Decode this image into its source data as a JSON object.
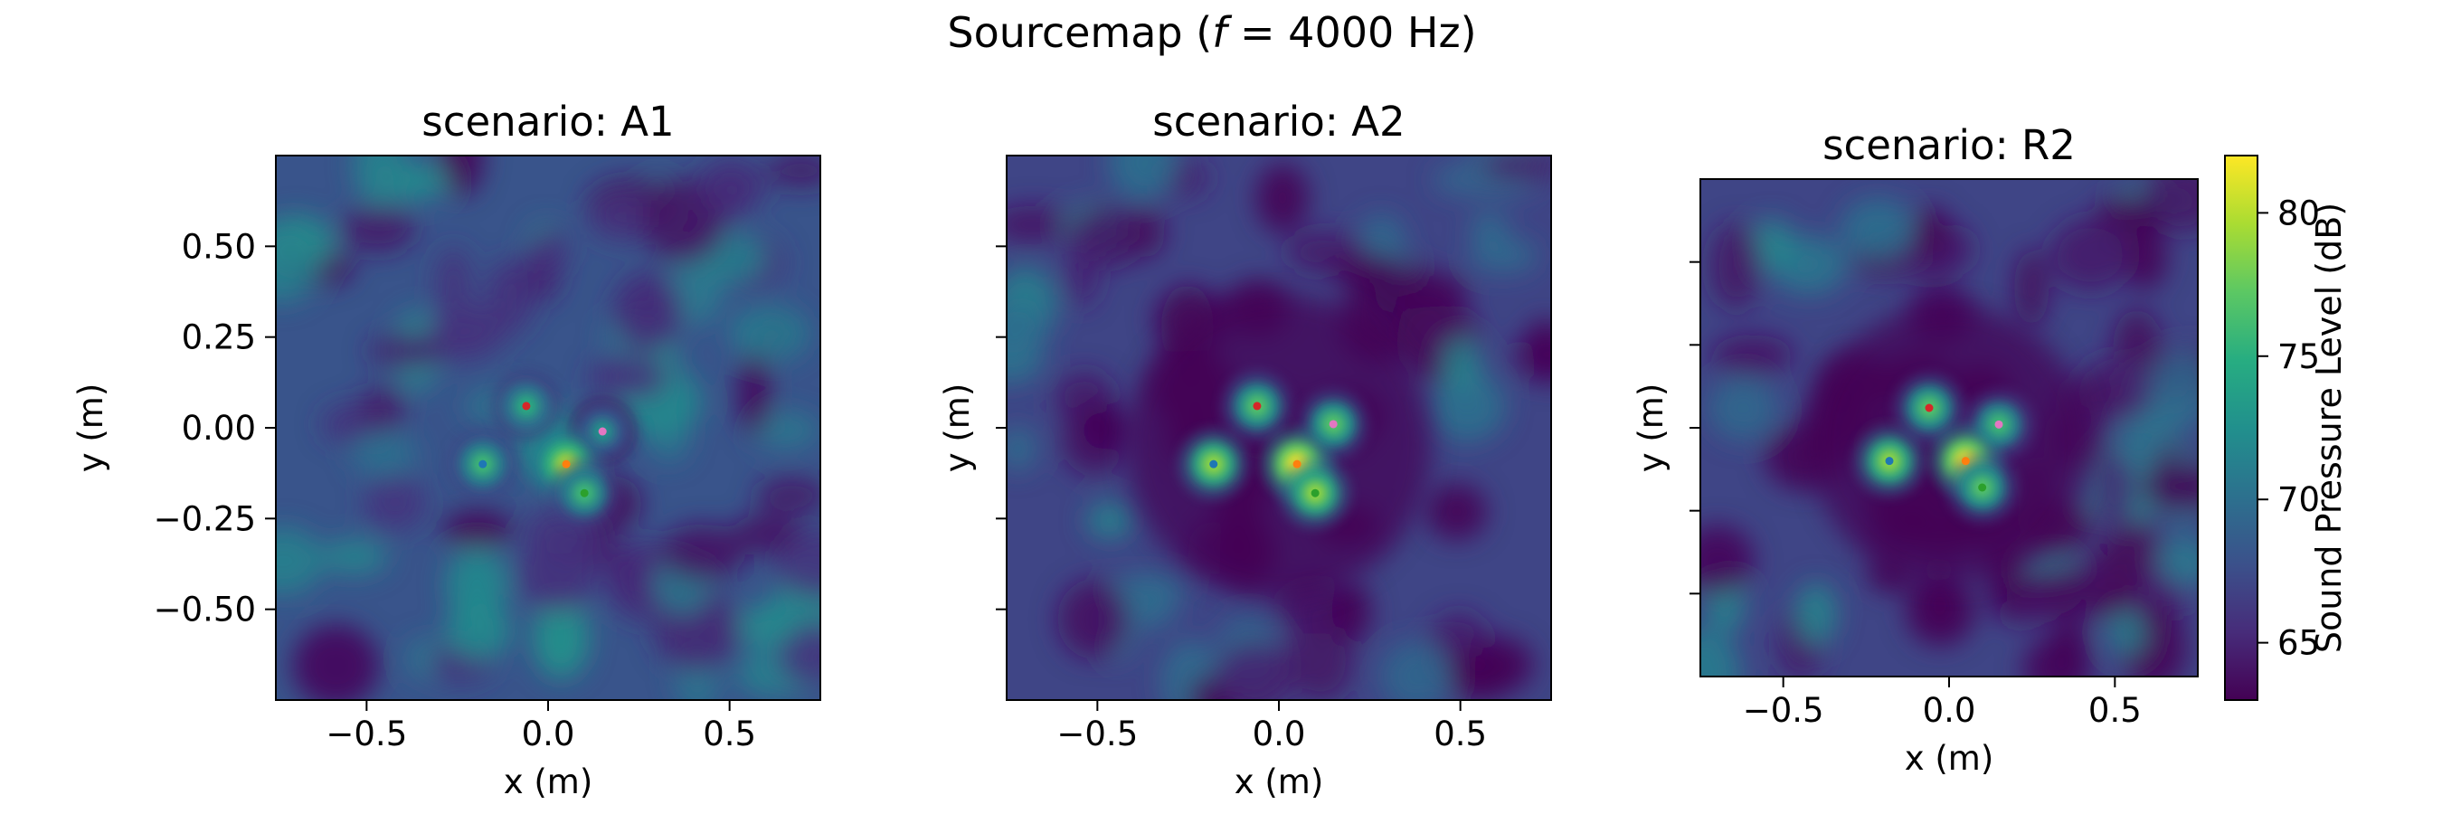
{
  "suptitle": {
    "prefix": "Sourcemap (",
    "f": "f",
    "eq": " = 4000 Hz)"
  },
  "colormap": {
    "name": "viridis",
    "stops": [
      "#440154",
      "#472c7a",
      "#3b518b",
      "#2c718e",
      "#21908d",
      "#27ad81",
      "#5cc863",
      "#aadc32",
      "#fde725"
    ]
  },
  "source_colors": [
    "#1f77b4",
    "#d62728",
    "#e377c2",
    "#ff7f0e",
    "#2ca02c"
  ],
  "chart_data": [
    {
      "type": "heatmap",
      "title": "scenario: A1",
      "xlabel": "x (m)",
      "ylabel": "y (m)",
      "xlim": [
        -0.75,
        0.75
      ],
      "ylim": [
        -0.75,
        0.75
      ],
      "xticks": [
        -0.5,
        0.0,
        0.5
      ],
      "xtick_labels": [
        "−0.5",
        "0.0",
        "0.5"
      ],
      "yticks": [
        -0.5,
        -0.25,
        0.0,
        0.25,
        0.5
      ],
      "ytick_labels": [
        "−0.50",
        "−0.25",
        "0.00",
        "0.25",
        "0.50"
      ],
      "background_level_db": 68,
      "sources": [
        {
          "x": -0.18,
          "y": -0.1,
          "level_db": 76,
          "color": "#1f77b4"
        },
        {
          "x": -0.06,
          "y": 0.06,
          "level_db": 75,
          "color": "#d62728"
        },
        {
          "x": 0.15,
          "y": -0.01,
          "level_db": 73,
          "color": "#e377c2"
        },
        {
          "x": 0.05,
          "y": -0.1,
          "level_db": 80,
          "color": "#ff7f0e"
        },
        {
          "x": 0.1,
          "y": -0.18,
          "level_db": 76,
          "color": "#2ca02c"
        }
      ]
    },
    {
      "type": "heatmap",
      "title": "scenario: A2",
      "xlabel": "x (m)",
      "ylabel": "y (m)",
      "xlim": [
        -0.75,
        0.75
      ],
      "ylim": [
        -0.75,
        0.75
      ],
      "xticks": [
        -0.5,
        0.0,
        0.5
      ],
      "xtick_labels": [
        "−0.5",
        "0.0",
        "0.5"
      ],
      "yticks": [
        -0.5,
        -0.25,
        0.0,
        0.25,
        0.5
      ],
      "ytick_labels": [],
      "background_level_db": 67,
      "sources": [
        {
          "x": -0.18,
          "y": -0.1,
          "level_db": 79,
          "color": "#1f77b4"
        },
        {
          "x": -0.06,
          "y": 0.06,
          "level_db": 77,
          "color": "#d62728"
        },
        {
          "x": 0.15,
          "y": 0.01,
          "level_db": 77,
          "color": "#e377c2"
        },
        {
          "x": 0.05,
          "y": -0.1,
          "level_db": 82,
          "color": "#ff7f0e"
        },
        {
          "x": 0.1,
          "y": -0.18,
          "level_db": 79,
          "color": "#2ca02c"
        }
      ]
    },
    {
      "type": "heatmap",
      "title": "scenario: R2",
      "xlabel": "x (m)",
      "ylabel": "y (m)",
      "xlim": [
        -0.75,
        0.75
      ],
      "ylim": [
        -0.75,
        0.75
      ],
      "xticks": [
        -0.5,
        0.0,
        0.5
      ],
      "xtick_labels": [
        "−0.5",
        "0.0",
        "0.5"
      ],
      "yticks": [
        -0.5,
        -0.25,
        0.0,
        0.25,
        0.5
      ],
      "ytick_labels": [],
      "background_level_db": 67,
      "sources": [
        {
          "x": -0.18,
          "y": -0.1,
          "level_db": 79,
          "color": "#1f77b4"
        },
        {
          "x": -0.06,
          "y": 0.06,
          "level_db": 77,
          "color": "#d62728"
        },
        {
          "x": 0.15,
          "y": 0.01,
          "level_db": 76,
          "color": "#e377c2"
        },
        {
          "x": 0.05,
          "y": -0.1,
          "level_db": 82,
          "color": "#ff7f0e"
        },
        {
          "x": 0.1,
          "y": -0.18,
          "level_db": 77,
          "color": "#2ca02c"
        }
      ]
    }
  ],
  "colorbar": {
    "label": "Sound Pressure Level (dB)",
    "range": [
      63,
      82
    ],
    "ticks": [
      65,
      70,
      75,
      80
    ],
    "tick_labels": [
      "65",
      "70",
      "75",
      "80"
    ]
  }
}
